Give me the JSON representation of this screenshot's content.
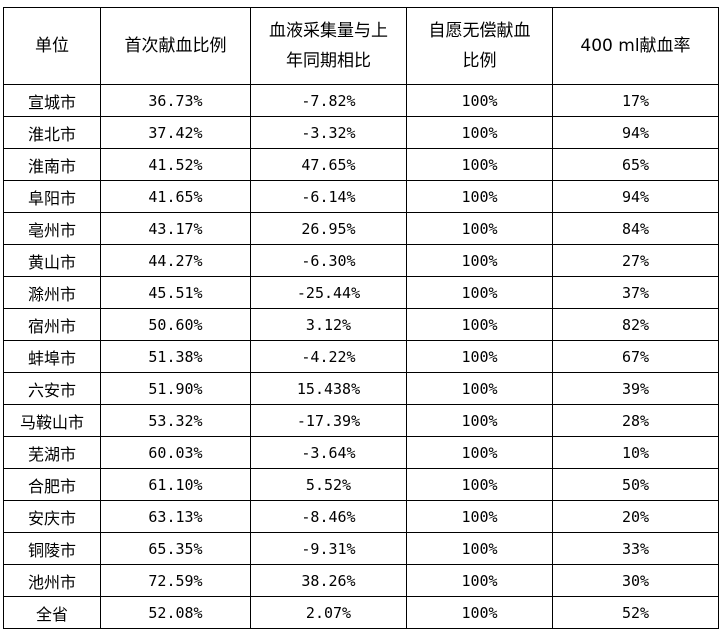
{
  "headers": [
    {
      "lines": [
        "单位"
      ]
    },
    {
      "lines": [
        "首次献血比例"
      ]
    },
    {
      "lines": [
        "血液采集量与上",
        "年同期相比"
      ]
    },
    {
      "lines": [
        "自愿无偿献血",
        "比例"
      ]
    },
    {
      "lines": [
        "400 ml献血率"
      ]
    }
  ],
  "rows": [
    [
      "宣城市",
      "36.73%",
      "-7.82%",
      "100%",
      "17%"
    ],
    [
      "淮北市",
      "37.42%",
      "-3.32%",
      "100%",
      "94%"
    ],
    [
      "淮南市",
      "41.52%",
      "47.65%",
      "100%",
      "65%"
    ],
    [
      "阜阳市",
      "41.65%",
      "-6.14%",
      "100%",
      "94%"
    ],
    [
      "亳州市",
      "43.17%",
      "26.95%",
      "100%",
      "84%"
    ],
    [
      "黄山市",
      "44.27%",
      "-6.30%",
      "100%",
      "27%"
    ],
    [
      "滁州市",
      "45.51%",
      "-25.44%",
      "100%",
      "37%"
    ],
    [
      "宿州市",
      "50.60%",
      "3.12%",
      "100%",
      "82%"
    ],
    [
      "蚌埠市",
      "51.38%",
      "-4.22%",
      "100%",
      "67%"
    ],
    [
      "六安市",
      "51.90%",
      "15.438%",
      "100%",
      "39%"
    ],
    [
      "马鞍山市",
      "53.32%",
      "-17.39%",
      "100%",
      "28%"
    ],
    [
      "芜湖市",
      "60.03%",
      "-3.64%",
      "100%",
      "10%"
    ],
    [
      "合肥市",
      "61.10%",
      "5.52%",
      "100%",
      "50%"
    ],
    [
      "安庆市",
      "63.13%",
      "-8.46%",
      "100%",
      "20%"
    ],
    [
      "铜陵市",
      "65.35%",
      "-9.31%",
      "100%",
      "33%"
    ],
    [
      "池州市",
      "72.59%",
      "38.26%",
      "100%",
      "30%"
    ],
    [
      "全省",
      "52.08%",
      "2.07%",
      "100%",
      "52%"
    ]
  ]
}
